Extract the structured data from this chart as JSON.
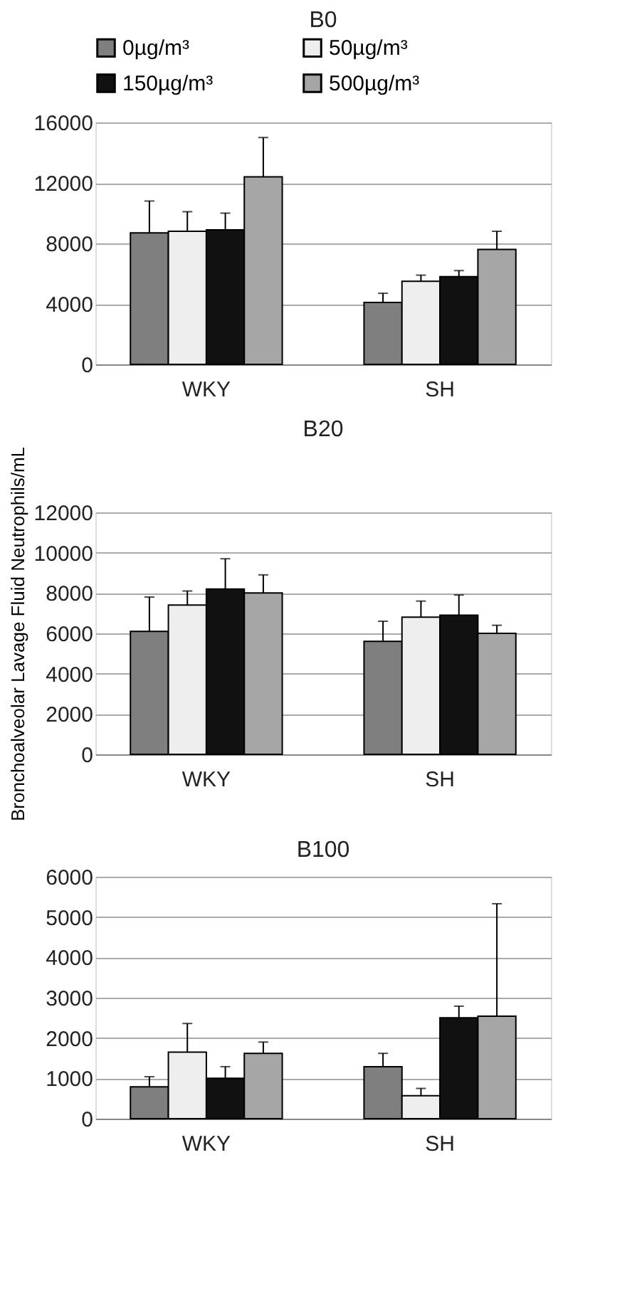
{
  "chart_data": [
    {
      "type": "bar",
      "title": "B0",
      "categories": [
        "WKY",
        "SH"
      ],
      "ylim": [
        0,
        16000
      ],
      "yticks": [
        0,
        4000,
        8000,
        12000,
        16000
      ],
      "grid": "y",
      "legend": "top",
      "series": [
        {
          "name": "0µg/m³",
          "color": "#7f7f7f",
          "values": [
            8700,
            4100
          ],
          "errors": [
            [
              8700,
              10800
            ],
            [
              4100,
              4700
            ]
          ]
        },
        {
          "name": "50µg/m³",
          "color": "#eeeeee",
          "values": [
            8800,
            5500
          ],
          "errors": [
            [
              8800,
              10100
            ],
            [
              5500,
              5900
            ]
          ]
        },
        {
          "name": "150µg/m³",
          "color": "#111111",
          "values": [
            8900,
            5800
          ],
          "errors": [
            [
              8900,
              10000
            ],
            [
              5800,
              6200
            ]
          ]
        },
        {
          "name": "500µg/m³",
          "color": "#a6a6a6",
          "values": [
            12400,
            7600
          ],
          "errors": [
            [
              12400,
              15000
            ],
            [
              7600,
              8800
            ]
          ]
        }
      ]
    },
    {
      "type": "bar",
      "title": "B20",
      "ylabel": "Bronchoalveolar Lavage Fluid Neutrophils/mL",
      "categories": [
        "WKY",
        "SH"
      ],
      "ylim": [
        0,
        12000
      ],
      "yticks": [
        0,
        2000,
        4000,
        6000,
        8000,
        10000,
        12000
      ],
      "grid": "y",
      "series": [
        {
          "color": "#7f7f7f",
          "values": [
            6100,
            5600
          ],
          "errors": [
            [
              6100,
              7800
            ],
            [
              5600,
              6600
            ]
          ]
        },
        {
          "color": "#eeeeee",
          "values": [
            7400,
            6800
          ],
          "errors": [
            [
              7400,
              8100
            ],
            [
              6800,
              7600
            ]
          ]
        },
        {
          "color": "#111111",
          "values": [
            8200,
            6900
          ],
          "errors": [
            [
              8200,
              9700
            ],
            [
              6900,
              7900
            ]
          ]
        },
        {
          "color": "#a6a6a6",
          "values": [
            8000,
            6000
          ],
          "errors": [
            [
              8000,
              8900
            ],
            [
              6000,
              6400
            ]
          ]
        }
      ]
    },
    {
      "type": "bar",
      "title": "B100",
      "categories": [
        "WKY",
        "SH"
      ],
      "ylim": [
        0,
        6000
      ],
      "yticks": [
        0,
        1000,
        2000,
        3000,
        4000,
        5000,
        6000
      ],
      "grid": "y",
      "series": [
        {
          "color": "#7f7f7f",
          "values": [
            790,
            1290
          ],
          "errors": [
            [
              790,
              1040
            ],
            [
              1290,
              1620
            ]
          ]
        },
        {
          "color": "#eeeeee",
          "values": [
            1650,
            570
          ],
          "errors": [
            [
              1650,
              2360
            ],
            [
              570,
              750
            ]
          ]
        },
        {
          "color": "#111111",
          "values": [
            1000,
            2500
          ],
          "errors": [
            [
              1000,
              1290
            ],
            [
              2500,
              2790
            ]
          ]
        },
        {
          "color": "#a6a6a6",
          "values": [
            1620,
            2540
          ],
          "errors": [
            [
              1620,
              1900
            ],
            [
              2540,
              5330
            ]
          ]
        }
      ]
    }
  ]
}
